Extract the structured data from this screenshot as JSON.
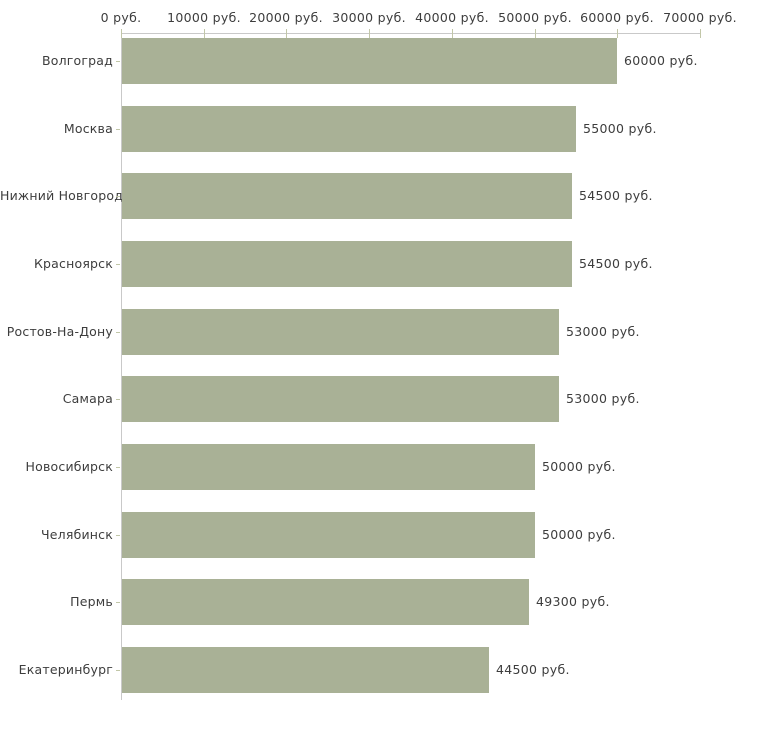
{
  "chart_data": {
    "type": "bar",
    "orientation": "horizontal",
    "title": "",
    "xlabel": "",
    "ylabel": "",
    "xlim": [
      0,
      70000
    ],
    "x_tick_interval": 10000,
    "grid": false,
    "legend": false,
    "categories": [
      "Волгоград",
      "Москва",
      "Нижний Новгород",
      "Красноярск",
      "Ростов-На-Дону",
      "Самара",
      "Новосибирск",
      "Челябинск",
      "Пермь",
      "Екатеринбург"
    ],
    "values": [
      60000,
      55000,
      54500,
      54500,
      53000,
      53000,
      50000,
      50000,
      49300,
      44500
    ],
    "value_labels": [
      "60000 руб.",
      "55000 руб.",
      "54500 руб.",
      "54500 руб.",
      "53000 руб.",
      "53000 руб.",
      "50000 руб.",
      "50000 руб.",
      "49300 руб.",
      "44500 руб."
    ],
    "x_tick_labels": [
      "0 руб.",
      "10000 руб.",
      "20000 руб.",
      "30000 руб.",
      "40000 руб.",
      "50000 руб.",
      "60000 руб.",
      "70000 руб."
    ],
    "colors": {
      "bar": "#a9b196",
      "axis_line": "#c9c9c9",
      "tick_mark": "#c2c7a8",
      "text": "#3d3d3d",
      "background": "#ffffff"
    }
  }
}
